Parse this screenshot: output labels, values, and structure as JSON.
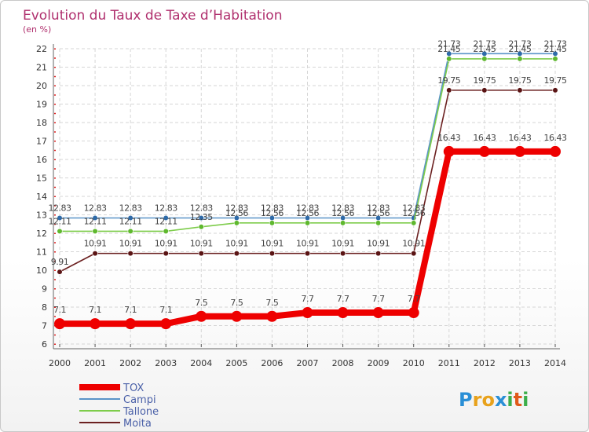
{
  "title": "Evolution du Taux de Taxe d’Habitation",
  "subtitle": "(en %)",
  "brand": {
    "letters": [
      "P",
      "r",
      "o",
      "x",
      "i",
      "t",
      "i"
    ],
    "colors": [
      "#2a8fd6",
      "#e8a21c",
      "#e8a21c",
      "#2a8fd6",
      "#3cae4a",
      "#e05a1a",
      "#3cae4a"
    ]
  },
  "chart_data": {
    "type": "line",
    "x": [
      "2000",
      "2001",
      "2002",
      "2003",
      "2004",
      "2005",
      "2006",
      "2007",
      "2008",
      "2009",
      "2010",
      "2011",
      "2012",
      "2013",
      "2014"
    ],
    "ylim": [
      6,
      22
    ],
    "yticks": [
      "6",
      "7",
      "8",
      "9",
      "10",
      "11",
      "12",
      "13",
      "14",
      "15",
      "16",
      "17",
      "18",
      "19",
      "20",
      "21",
      "22"
    ],
    "grid": true,
    "legend_position": "bottom-left",
    "series": [
      {
        "name": "Campi",
        "color": "#5a94c8",
        "marker": "#2e6aa8",
        "values": [
          12.83,
          12.83,
          12.83,
          12.83,
          12.83,
          12.83,
          12.83,
          12.83,
          12.83,
          12.83,
          12.83,
          21.73,
          21.73,
          21.73,
          21.73
        ],
        "labels": [
          "12.83",
          "12.83",
          "12.83",
          "12.83",
          "12.83",
          "12.83",
          "12.83",
          "12.83",
          "12.83",
          "12.83",
          "12.83",
          "21.73",
          "21.73",
          "21.73",
          "21.73"
        ]
      },
      {
        "name": "Tallone",
        "color": "#7dcc4a",
        "marker": "#5fb82e",
        "values": [
          12.11,
          12.11,
          12.11,
          12.11,
          12.35,
          12.56,
          12.56,
          12.56,
          12.56,
          12.56,
          12.56,
          21.45,
          21.45,
          21.45,
          21.45
        ],
        "labels": [
          "12.11",
          "12.11",
          "12.11",
          "12.11",
          "12.35",
          "12.56",
          "12.56",
          "12.56",
          "12.56",
          "12.56",
          "12.56",
          "21.45",
          "21.45",
          "21.45",
          "21.45"
        ]
      },
      {
        "name": "Moita",
        "color": "#6b2020",
        "marker": "#5a1414",
        "values": [
          9.91,
          10.91,
          10.91,
          10.91,
          10.91,
          10.91,
          10.91,
          10.91,
          10.91,
          10.91,
          10.91,
          19.75,
          19.75,
          19.75,
          19.75
        ],
        "labels": [
          "9.91",
          "10.91",
          "10.91",
          "10.91",
          "10.91",
          "10.91",
          "10.91",
          "10.91",
          "10.91",
          "10.91",
          "10.91",
          "19.75",
          "19.75",
          "19.75",
          "19.75"
        ]
      },
      {
        "name": "TOX",
        "color": "#ee0000",
        "marker": "#ee0000",
        "values": [
          7.1,
          7.1,
          7.1,
          7.1,
          7.5,
          7.5,
          7.5,
          7.7,
          7.7,
          7.7,
          7.7,
          16.43,
          16.43,
          16.43,
          16.43
        ],
        "labels": [
          "7.1",
          "7.1",
          "7.1",
          "7.1",
          "7.5",
          "7.5",
          "7.5",
          "7.7",
          "7.7",
          "7.7",
          "7.7",
          "16.43",
          "16.43",
          "16.43",
          "16.43"
        ]
      }
    ],
    "legend": [
      {
        "name": "TOX",
        "color": "#ee0000"
      },
      {
        "name": "Campi",
        "color": "#5a94c8"
      },
      {
        "name": "Tallone",
        "color": "#7dcc4a"
      },
      {
        "name": "Moita",
        "color": "#6b2020"
      }
    ]
  }
}
